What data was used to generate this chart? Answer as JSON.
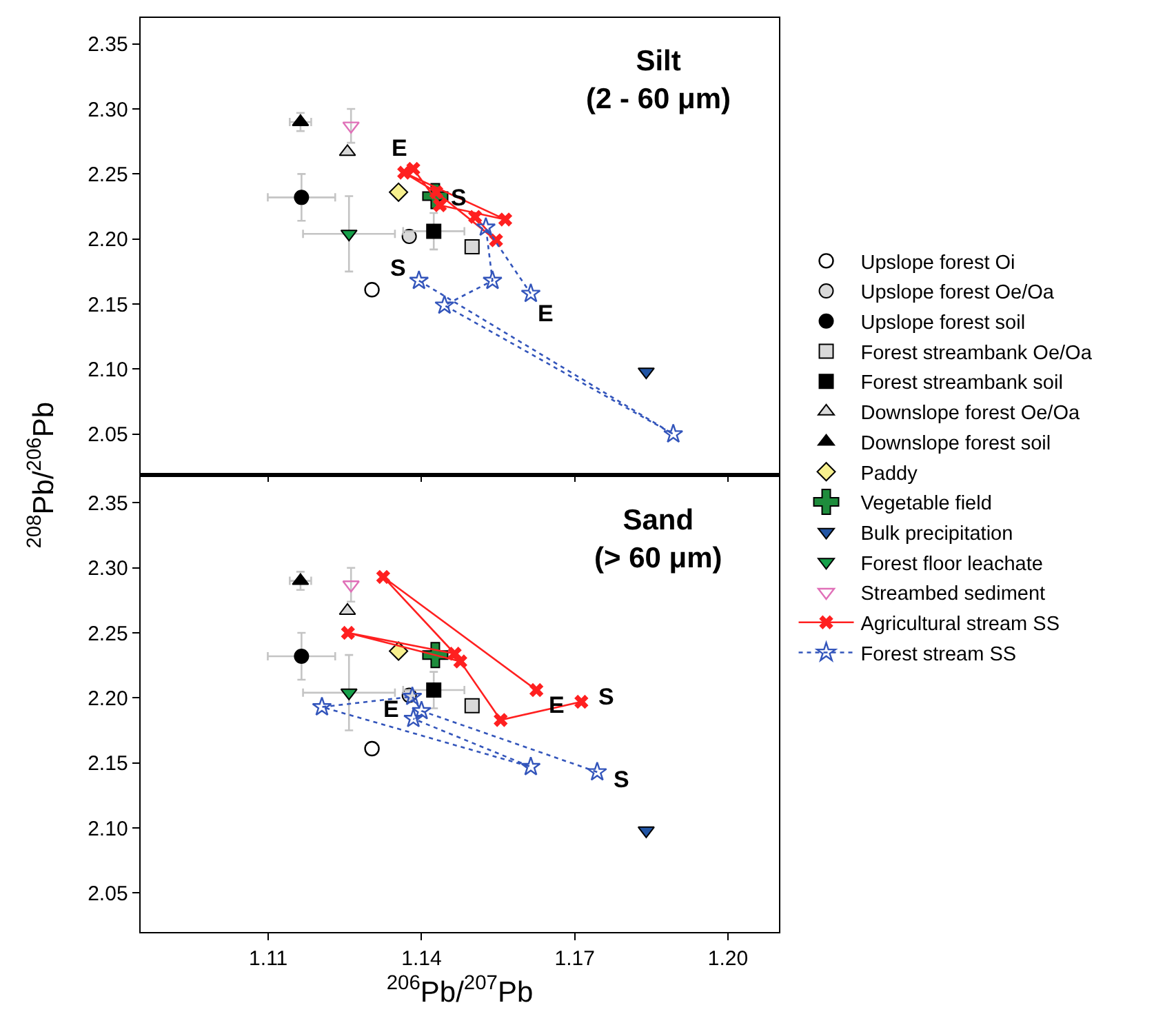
{
  "chart_data": [
    {
      "type": "scatter",
      "title": "Silt\n(2 - 60 μm)",
      "xlim": [
        1.085,
        1.21
      ],
      "ylim": [
        2.02,
        2.37
      ],
      "xticks": [
        1.11,
        1.14,
        1.17,
        1.2
      ],
      "yticks": [
        2.05,
        {
          "value": 2.1,
          "label": "2.10"
        },
        2.15,
        {
          "value": 2.2,
          "label": "2.20"
        },
        2.25,
        {
          "value": 2.3,
          "label": "2.30"
        },
        2.35
      ],
      "tick_labels": "y",
      "grid": false,
      "legend": "right",
      "annotations": [
        {
          "text": "E",
          "x": 1.1384,
          "y": 2.254
        },
        {
          "text": "S",
          "x": 1.1505,
          "y": 2.217
        },
        {
          "text": "S",
          "x": 1.1395,
          "y": 2.168
        },
        {
          "text": "E",
          "x": 1.1614,
          "y": 2.158
        }
      ],
      "series": [
        {
          "name": "Upslope forest Oi",
          "color": "#000000",
          "marker": "circle-open",
          "x": [
            1.1303
          ],
          "values": [
            2.161
          ]
        },
        {
          "name": "Upslope forest Oe/Oa",
          "color": "#d9d9d9",
          "marker": "circle",
          "x": [
            1.1376
          ],
          "values": [
            2.202
          ]
        },
        {
          "name": "Upslope forest soil",
          "color": "#000000",
          "marker": "circle",
          "x": [
            1.1165
          ],
          "values": [
            2.232
          ],
          "errors": [
            0.018
          ],
          "xerrors": [
            0.0066
          ]
        },
        {
          "name": "Forest streambank Oe/Oa",
          "color": "#d9d9d9",
          "marker": "square",
          "x": [
            1.1499
          ],
          "values": [
            2.194
          ]
        },
        {
          "name": "Forest streambank soil",
          "color": "#000000",
          "marker": "square",
          "x": [
            1.1424
          ],
          "values": [
            2.206
          ],
          "errors": [
            0.014
          ],
          "xerrors": [
            0.006
          ]
        },
        {
          "name": "Downslope forest Oe/Oa",
          "color": "#d9d9d9",
          "marker": "triangle",
          "x": [
            1.1255
          ],
          "values": [
            2.267
          ]
        },
        {
          "name": "Downslope forest soil",
          "color": "#000000",
          "marker": "triangle",
          "x": [
            1.1163
          ],
          "values": [
            2.29
          ],
          "errors": [
            0.007
          ],
          "xerrors": [
            0.0021
          ]
        },
        {
          "name": "Paddy",
          "color": "#f7f08e",
          "marker": "diamond",
          "x": [
            1.1355
          ],
          "values": [
            2.236
          ]
        },
        {
          "name": "Vegetable field",
          "color": "#1e8c3c",
          "marker": "cross",
          "x": [
            1.1427
          ],
          "values": [
            2.233
          ]
        },
        {
          "name": "Bulk precipitation",
          "color": "#2255a4",
          "marker": "triangle-down",
          "x": [
            1.184
          ],
          "values": [
            2.098
          ]
        },
        {
          "name": "Forest floor leachate",
          "color": "#16a04a",
          "marker": "triangle-down",
          "x": [
            1.1258
          ],
          "values": [
            2.204
          ],
          "errors": [
            0.029
          ],
          "xerrors": [
            0.009
          ]
        },
        {
          "name": "Streambed sediment",
          "color": "#e070b8",
          "marker": "triangle-down-open",
          "x": [
            1.1262
          ],
          "values": [
            2.287
          ],
          "errors": [
            0.013
          ]
        },
        {
          "name": "Agricultural stream SS",
          "type": "line",
          "color": "#ff2020",
          "marker": "x",
          "line_style": "solid",
          "x": [
            1.1505,
            1.1546,
            1.1429,
            1.1366,
            1.1564,
            1.1436,
            1.1384
          ],
          "values": [
            2.217,
            2.199,
            2.236,
            2.251,
            2.215,
            2.226,
            2.254
          ]
        },
        {
          "name": "Forest stream SS",
          "type": "line",
          "color": "#3355bb",
          "marker": "star-open",
          "line_style": "dotted",
          "x": [
            1.1395,
            1.1893,
            1.1445,
            1.1539,
            1.1526,
            1.1614
          ],
          "values": [
            2.168,
            2.05,
            2.149,
            2.168,
            2.209,
            2.158
          ]
        }
      ]
    },
    {
      "type": "scatter",
      "title": "Sand\n(> 60 μm)",
      "xlabel": "$^{206}$Pb/$^{207}$Pb",
      "ylabel": "$^{208}$Pb/$^{206}$Pb",
      "xlim": [
        1.085,
        1.21
      ],
      "ylim": [
        2.02,
        2.37
      ],
      "xticks": [
        1.11,
        1.14,
        1.17,
        {
          "value": 1.2,
          "label": "1.20"
        }
      ],
      "yticks": [
        2.05,
        {
          "value": 2.1,
          "label": "2.10"
        },
        2.15,
        {
          "value": 2.2,
          "label": "2.20"
        },
        2.25,
        {
          "value": 2.3,
          "label": "2.30"
        },
        2.35
      ],
      "grid": false,
      "annotations": [
        {
          "text": "E",
          "x": 1.1625,
          "y": 2.206
        },
        {
          "text": "S",
          "x": 1.1713,
          "y": 2.197
        },
        {
          "text": "E",
          "x": 1.1384,
          "y": 2.184
        },
        {
          "text": "S",
          "x": 1.1744,
          "y": 2.143
        }
      ],
      "series": [
        {
          "color": "#000000",
          "marker": "circle-open",
          "x": [
            1.1303
          ],
          "values": [
            2.161
          ]
        },
        {
          "color": "#d9d9d9",
          "marker": "circle",
          "x": [
            1.1376
          ],
          "values": [
            2.202
          ]
        },
        {
          "color": "#000000",
          "marker": "circle",
          "x": [
            1.1165
          ],
          "values": [
            2.232
          ],
          "errors": [
            0.018
          ],
          "xerrors": [
            0.0066
          ]
        },
        {
          "color": "#d9d9d9",
          "marker": "square",
          "x": [
            1.1499
          ],
          "values": [
            2.194
          ]
        },
        {
          "color": "#000000",
          "marker": "square",
          "x": [
            1.1424
          ],
          "values": [
            2.206
          ],
          "errors": [
            0.014
          ],
          "xerrors": [
            0.006
          ]
        },
        {
          "color": "#d9d9d9",
          "marker": "triangle",
          "x": [
            1.1255
          ],
          "values": [
            2.267
          ]
        },
        {
          "color": "#000000",
          "marker": "triangle",
          "x": [
            1.1163
          ],
          "values": [
            2.29
          ],
          "errors": [
            0.007
          ],
          "xerrors": [
            0.0021
          ]
        },
        {
          "color": "#f7f08e",
          "marker": "diamond",
          "x": [
            1.1355
          ],
          "values": [
            2.236
          ]
        },
        {
          "color": "#1e8c3c",
          "marker": "cross",
          "x": [
            1.1427
          ],
          "values": [
            2.233
          ]
        },
        {
          "color": "#2255a4",
          "marker": "triangle-down",
          "x": [
            1.184
          ],
          "values": [
            2.098
          ]
        },
        {
          "color": "#16a04a",
          "marker": "triangle-down",
          "x": [
            1.1258
          ],
          "values": [
            2.204
          ],
          "errors": [
            0.029
          ],
          "xerrors": [
            0.009
          ]
        },
        {
          "color": "#e070b8",
          "marker": "triangle-down-open",
          "x": [
            1.1262
          ],
          "values": [
            2.287
          ],
          "errors": [
            0.013
          ]
        },
        {
          "type": "line",
          "color": "#ff2020",
          "marker": "x",
          "line_style": "solid",
          "x": [
            1.1713,
            1.1555,
            1.1476,
            1.1256,
            1.1465,
            1.1325,
            1.1625
          ],
          "values": [
            2.197,
            2.183,
            2.228,
            2.25,
            2.234,
            2.293,
            2.206
          ]
        },
        {
          "type": "line",
          "color": "#3355bb",
          "marker": "star-open",
          "line_style": "dotted",
          "x": [
            1.1744,
            1.14,
            1.1382,
            1.1205,
            1.1614,
            1.1384
          ],
          "values": [
            2.143,
            2.19,
            2.201,
            2.193,
            2.147,
            2.184
          ]
        }
      ]
    }
  ]
}
